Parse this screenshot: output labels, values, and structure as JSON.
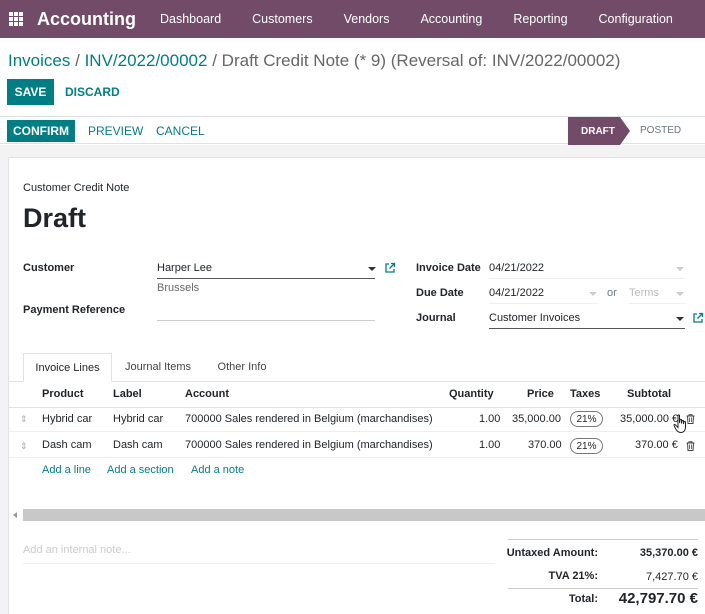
{
  "topbar": {
    "app_name": "Accounting",
    "menu": [
      "Dashboard",
      "Customers",
      "Vendors",
      "Accounting",
      "Reporting",
      "Configuration"
    ]
  },
  "breadcrumb": {
    "root": "Invoices",
    "sep1": "/",
    "parent": "INV/2022/00002",
    "sep2": "/",
    "current": "Draft Credit Note (* 9) (Reversal of: INV/2022/00002)"
  },
  "actions": {
    "save": "SAVE",
    "discard": "DISCARD",
    "confirm": "CONFIRM",
    "preview": "PREVIEW",
    "cancel": "CANCEL"
  },
  "status": {
    "stages": [
      "DRAFT",
      "POSTED"
    ],
    "active": "DRAFT",
    "accent": "#714b67"
  },
  "form": {
    "subtitle": "Customer Credit Note",
    "title": "Draft",
    "customer_label": "Customer",
    "customer_value": "Harper Lee",
    "customer_address": "Brussels",
    "payment_ref_label": "Payment Reference",
    "payment_ref_value": "",
    "invoice_date_label": "Invoice Date",
    "invoice_date_value": "04/21/2022",
    "due_date_label": "Due Date",
    "due_date_value": "04/21/2022",
    "or_text": "or",
    "terms_placeholder": "Terms",
    "journal_label": "Journal",
    "journal_value": "Customer Invoices"
  },
  "tabs": [
    "Invoice Lines",
    "Journal Items",
    "Other Info"
  ],
  "active_tab": "Invoice Lines",
  "lines": {
    "columns": [
      "Product",
      "Label",
      "Account",
      "Quantity",
      "Price",
      "Taxes",
      "Subtotal"
    ],
    "rows": [
      {
        "product": "Hybrid car",
        "label": "Hybrid car",
        "account": "700000 Sales rendered in Belgium (marchandises)",
        "quantity": "1.00",
        "price": "35,000.00",
        "tax": "21%",
        "subtotal": "35,000.00 €"
      },
      {
        "product": "Dash cam",
        "label": "Dash cam",
        "account": "700000 Sales rendered in Belgium (marchandises)",
        "quantity": "1.00",
        "price": "370.00",
        "tax": "21%",
        "subtotal": "370.00 €"
      }
    ],
    "add_line": "Add a line",
    "add_section": "Add a section",
    "add_note": "Add a note"
  },
  "note_placeholder": "Add an internal note...",
  "totals": {
    "untaxed_label": "Untaxed Amount:",
    "untaxed_value": "35,370.00 €",
    "tax_label": "TVA 21%:",
    "tax_value": "7,427.70 €",
    "total_label": "Total:",
    "total_value": "42,797.70 €"
  },
  "colors": {
    "primary": "#714b67",
    "teal": "#017e84"
  }
}
